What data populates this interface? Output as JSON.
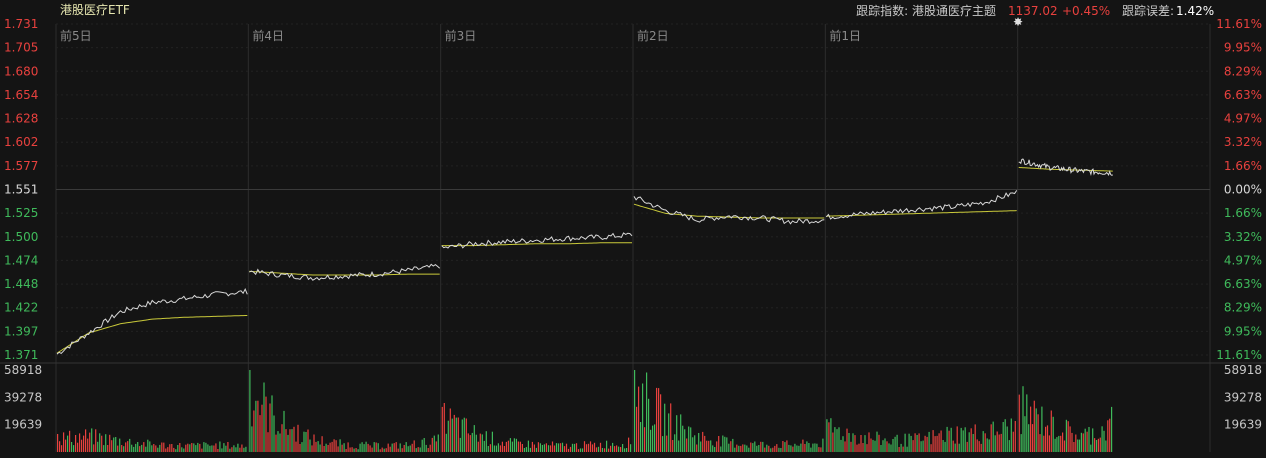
{
  "header": {
    "title": "港股医疗ETF",
    "tracking_index_label": "跟踪指数: 港股通医疗主题",
    "index_value": "1137.02",
    "index_change": "+0.45%",
    "tracking_error_label": "跟踪误差:",
    "tracking_error_value": "1.42%"
  },
  "colors": {
    "background": "#141414",
    "up": "#e8413e",
    "down": "#3fba5b",
    "price_line": "#d8d8d8",
    "avg_line": "#c9c93a",
    "grid": "#2a2a2a",
    "text": "#c8c8c8"
  },
  "chart_data": {
    "type": "line",
    "title": "港股医疗ETF",
    "days": [
      "前5日",
      "前4日",
      "前3日",
      "前2日",
      "前1日",
      ""
    ],
    "y_ticks_price": [
      "1.731",
      "1.705",
      "1.680",
      "1.654",
      "1.628",
      "1.602",
      "1.577",
      "1.551",
      "1.525",
      "1.500",
      "1.474",
      "1.448",
      "1.422",
      "1.397",
      "1.371"
    ],
    "y_ticks_pct": [
      "11.61%",
      "9.95%",
      "8.29%",
      "6.63%",
      "4.97%",
      "3.32%",
      "1.66%",
      "0.00%",
      "1.66%",
      "3.32%",
      "4.97%",
      "6.63%",
      "8.29%",
      "9.95%",
      "11.61%"
    ],
    "ylim": [
      1.371,
      1.731
    ],
    "prev_close": 1.551,
    "volume_ticks": [
      "58918",
      "39278",
      "19639"
    ],
    "volume_max": 58918,
    "series": [
      {
        "values_price": [
          [
            1.372,
            1.395,
            1.418,
            1.428,
            1.432,
            1.437,
            1.44
          ],
          [
            1.462,
            1.458,
            1.455,
            1.457,
            1.459,
            1.463,
            1.468
          ],
          [
            1.487,
            1.492,
            1.494,
            1.496,
            1.498,
            1.499,
            1.502
          ],
          [
            1.543,
            1.528,
            1.518,
            1.522,
            1.52,
            1.516,
            1.518
          ],
          [
            1.521,
            1.524,
            1.527,
            1.53,
            1.532,
            1.537,
            1.548
          ],
          [
            1.583,
            1.575,
            1.571,
            1.569
          ]
        ]
      },
      {
        "values_avg": [
          [
            1.373,
            1.395,
            1.405,
            1.41,
            1.412,
            1.413,
            1.414
          ],
          [
            1.462,
            1.46,
            1.458,
            1.458,
            1.458,
            1.459,
            1.459
          ],
          [
            1.49,
            1.49,
            1.491,
            1.492,
            1.492,
            1.493,
            1.493
          ],
          [
            1.535,
            1.525,
            1.522,
            1.521,
            1.52,
            1.52,
            1.52
          ],
          [
            1.522,
            1.523,
            1.524,
            1.525,
            1.526,
            1.527,
            1.528
          ],
          [
            1.575,
            1.573,
            1.572,
            1.571
          ]
        ]
      }
    ],
    "volume_peaks": [
      [
        0.22,
        0.25,
        0.18,
        0.12,
        0.1,
        0.11,
        0.1
      ],
      [
        1.0,
        0.45,
        0.2,
        0.12,
        0.1,
        0.11,
        0.18
      ],
      [
        0.55,
        0.3,
        0.15,
        0.12,
        0.1,
        0.12,
        0.15
      ],
      [
        1.0,
        0.55,
        0.25,
        0.15,
        0.12,
        0.12,
        0.14
      ],
      [
        0.4,
        0.25,
        0.18,
        0.2,
        0.3,
        0.3,
        0.4
      ],
      [
        0.7,
        0.45,
        0.25,
        0.4
      ]
    ]
  }
}
